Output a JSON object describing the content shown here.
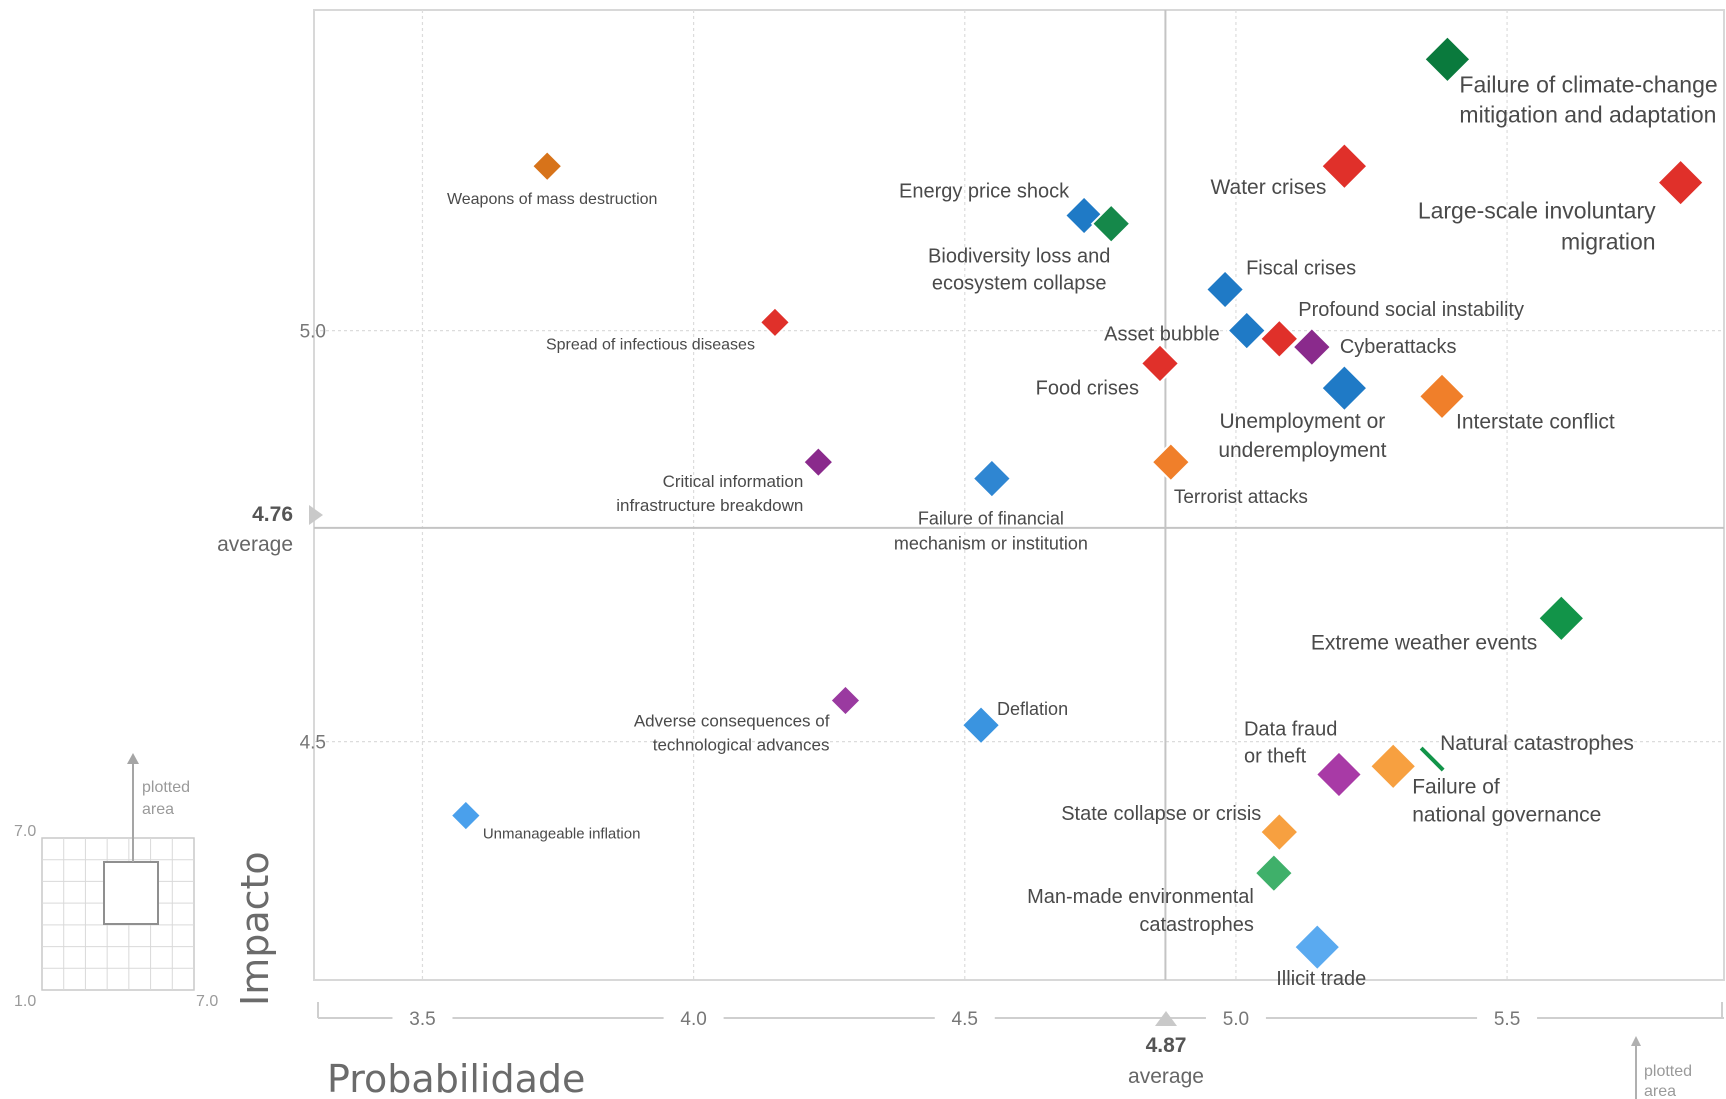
{
  "chart_data": {
    "type": "scatter",
    "xlabel": "Probabilidade",
    "ylabel": "Impacto",
    "xlim": [
      3.3,
      5.9
    ],
    "ylim": [
      4.21,
      5.39
    ],
    "x_ticks": [
      "3.5",
      "4.0",
      "4.5",
      "5.0",
      "5.5"
    ],
    "y_ticks": [
      "5.0",
      "4.5"
    ],
    "x_average": {
      "value": "4.87",
      "label": "average"
    },
    "y_average": {
      "value": "4.76",
      "label": "average"
    },
    "inset": {
      "label_lines": [
        "plotted",
        "area"
      ],
      "tick_min": "1.0",
      "tick_max": "7.0"
    },
    "corner_inset": {
      "label_lines": [
        "plotted",
        "area"
      ]
    },
    "points": [
      {
        "x": 5.39,
        "y": 5.33,
        "color": "#0a7a3d",
        "label_lines": [
          "Failure of climate-change",
          "mitigation and adaptation"
        ],
        "size": "large"
      },
      {
        "x": 3.73,
        "y": 5.2,
        "color": "#d7731a",
        "label_lines": [
          "Weapons of mass destruction"
        ],
        "size": "small"
      },
      {
        "x": 5.2,
        "y": 5.2,
        "color": "#e0302a",
        "label_lines": [
          "Water crises"
        ],
        "size": "large"
      },
      {
        "x": 5.82,
        "y": 5.18,
        "color": "#e0302a",
        "label_lines": [
          "Large-scale involuntary",
          "migration"
        ],
        "size": "large"
      },
      {
        "x": 4.72,
        "y": 5.14,
        "color": "#1f7ac6",
        "label_lines": [
          "Energy price shock"
        ],
        "size": "medium"
      },
      {
        "x": 4.77,
        "y": 5.13,
        "color": "#15884a",
        "label_lines": [
          "Biodiversity loss and",
          "ecosystem collapse"
        ],
        "size": "medium"
      },
      {
        "x": 4.98,
        "y": 5.05,
        "color": "#1f7ac6",
        "label_lines": [
          "Fiscal crises"
        ],
        "size": "medium"
      },
      {
        "x": 4.15,
        "y": 5.01,
        "color": "#e0302a",
        "label_lines": [
          "Spread of infectious diseases"
        ],
        "size": "small"
      },
      {
        "x": 5.02,
        "y": 5.0,
        "color": "#1f7ac6",
        "label_lines": [
          "Asset bubble"
        ],
        "size": "medium"
      },
      {
        "x": 5.08,
        "y": 4.99,
        "color": "#e0302a",
        "label_lines": [
          "Profound social instability"
        ],
        "size": "medium"
      },
      {
        "x": 5.14,
        "y": 4.98,
        "color": "#8a2a8c",
        "label_lines": [
          "Cyberattacks"
        ],
        "size": "medium"
      },
      {
        "x": 4.86,
        "y": 4.96,
        "color": "#e0302a",
        "label_lines": [
          "Food crises"
        ],
        "size": "medium"
      },
      {
        "x": 5.2,
        "y": 4.93,
        "color": "#1f7ac6",
        "label_lines": [
          "Unemployment or",
          "underemployment"
        ],
        "size": "large"
      },
      {
        "x": 5.38,
        "y": 4.92,
        "color": "#f07f2a",
        "label_lines": [
          "Interstate conflict"
        ],
        "size": "large"
      },
      {
        "x": 4.23,
        "y": 4.84,
        "color": "#8a2a8c",
        "label_lines": [
          "Critical information",
          "infrastructure breakdown"
        ],
        "size": "small"
      },
      {
        "x": 4.88,
        "y": 4.84,
        "color": "#f07f2a",
        "label_lines": [
          "Terrorist attacks"
        ],
        "size": "medium"
      },
      {
        "x": 4.55,
        "y": 4.82,
        "color": "#2f86d2",
        "label_lines": [
          "Failure of financial",
          "mechanism or institution"
        ],
        "size": "medium"
      },
      {
        "x": 5.6,
        "y": 4.65,
        "color": "#129449",
        "label_lines": [
          "Extreme weather events"
        ],
        "size": "large"
      },
      {
        "x": 4.28,
        "y": 4.55,
        "color": "#9a3aa0",
        "label_lines": [
          "Adverse consequences of",
          "technological advances"
        ],
        "size": "small"
      },
      {
        "x": 4.53,
        "y": 4.52,
        "color": "#3a94e0",
        "label_lines": [
          "Deflation"
        ],
        "size": "medium"
      },
      {
        "x": 5.36,
        "y": 4.48,
        "color": "#129449",
        "label_lines": [
          "Natural catastrophes"
        ],
        "size": "none"
      },
      {
        "x": 5.29,
        "y": 4.47,
        "color": "#f7a040",
        "label_lines": [
          "Failure of",
          "national governance"
        ],
        "size": "large"
      },
      {
        "x": 5.19,
        "y": 4.46,
        "color": "#a83aa6",
        "label_lines": [
          "Data fraud",
          "or theft"
        ],
        "size": "large"
      },
      {
        "x": 3.58,
        "y": 4.41,
        "color": "#4aa0ec",
        "label_lines": [
          "Unmanageable inflation"
        ],
        "size": "small"
      },
      {
        "x": 5.08,
        "y": 4.39,
        "color": "#f7a040",
        "label_lines": [
          "State collapse or crisis"
        ],
        "size": "medium"
      },
      {
        "x": 5.07,
        "y": 4.34,
        "color": "#3fb06a",
        "label_lines": [
          "Man-made environmental",
          "catastrophes"
        ],
        "size": "medium"
      },
      {
        "x": 5.15,
        "y": 4.25,
        "color": "#5aaaf0",
        "label_lines": [
          "Illicit trade"
        ],
        "size": "large"
      }
    ]
  }
}
